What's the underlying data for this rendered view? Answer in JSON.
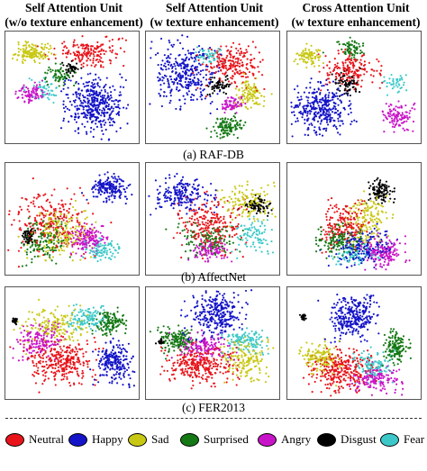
{
  "columns": [
    {
      "line1": "Self Attention Unit",
      "line2": "(w/o texture enhancement)"
    },
    {
      "line1": "Self Attention Unit",
      "line2": "(w texture enhancement)"
    },
    {
      "line1": "Cross Attention Unit",
      "line2": "(w texture enhancement)"
    }
  ],
  "rows": [
    {
      "caption": "(a) RAF-DB"
    },
    {
      "caption": "(b) AffectNet"
    },
    {
      "caption": "(c) FER2013"
    }
  ],
  "legend": [
    {
      "label": "Neutral",
      "color": "#e8141a"
    },
    {
      "label": "Happy",
      "color": "#1414c8"
    },
    {
      "label": "Sad",
      "color": "#c8c814"
    },
    {
      "label": "Surprised",
      "color": "#147814"
    },
    {
      "label": "Angry",
      "color": "#c814c8"
    },
    {
      "label": "Disgust",
      "color": "#000000"
    },
    {
      "label": "Fear",
      "color": "#3cc8c8"
    }
  ]
}
